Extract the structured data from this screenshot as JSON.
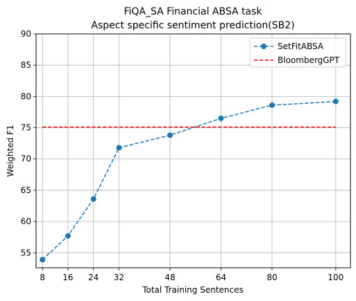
{
  "chart_data": {
    "type": "line",
    "title": "FiQA_SA Financial ABSA task",
    "subtitle": "Aspect specific sentiment prediction(SB2)",
    "xlabel": "Total Training Sentences",
    "ylabel": "Weighted F1",
    "x": [
      8,
      16,
      24,
      32,
      48,
      64,
      80,
      100
    ],
    "xticks": [
      8,
      16,
      24,
      32,
      48,
      64,
      80,
      100
    ],
    "yticks": [
      55,
      60,
      65,
      70,
      75,
      80,
      85,
      90
    ],
    "xlim": [
      6,
      104.6
    ],
    "ylim": [
      52.6,
      90
    ],
    "grid": true,
    "legend_position": "top-right",
    "series": [
      {
        "name": "SetFitABSA",
        "values": [
          53.9,
          57.7,
          63.6,
          71.8,
          73.8,
          76.5,
          78.6,
          79.2
        ],
        "color": "#1f77b4",
        "style": "dashed",
        "marker": "circle"
      },
      {
        "name": "BloombergGPT",
        "values": [
          75.1,
          75.1,
          75.1,
          75.1,
          75.1,
          75.1,
          75.1,
          75.1
        ],
        "color": "#ff0000",
        "style": "dashed",
        "marker": "none"
      }
    ]
  }
}
